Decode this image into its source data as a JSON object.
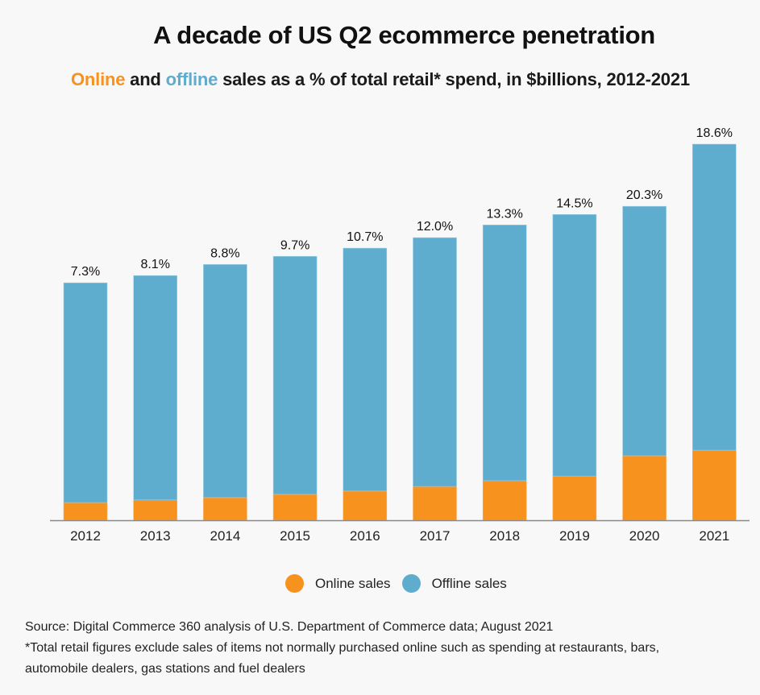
{
  "chart_data": {
    "type": "bar",
    "stacked": true,
    "title": "A decade of US Q2 ecommerce penetration",
    "subtitle": {
      "online_word": "Online",
      "connector": " and ",
      "offline_word": "offline",
      "rest": " sales as a % of total retail* spend, in $billions, 2012-2021"
    },
    "xlabel": "",
    "ylabel": "",
    "y_axis_visible": false,
    "grid": false,
    "units": "$ billions (estimated; no y-axis shown)",
    "ylim": [
      0,
      1200
    ],
    "categories": [
      "2012",
      "2013",
      "2014",
      "2015",
      "2016",
      "2017",
      "2018",
      "2019",
      "2020",
      "2021"
    ],
    "series": [
      {
        "name": "Online sales",
        "color": "#f7921e",
        "values": [
          54,
          62,
          69,
          79,
          89,
          103,
          121,
          135,
          197,
          214
        ]
      },
      {
        "name": "Offline sales",
        "color": "#5eacce",
        "values": [
          672,
          686,
          713,
          728,
          743,
          761,
          782,
          800,
          763,
          936
        ]
      }
    ],
    "data_labels": [
      "7.3%",
      "8.1%",
      "8.8%",
      "9.7%",
      "10.7%",
      "12.0%",
      "13.3%",
      "14.5%",
      "20.3%",
      "18.6%"
    ],
    "legend": {
      "position": "bottom-center",
      "entries": [
        {
          "label": "Online sales",
          "color": "#f7921e"
        },
        {
          "label": "Offline sales",
          "color": "#5eacce"
        }
      ]
    }
  },
  "colors": {
    "online": "#f7921e",
    "offline": "#5eacce",
    "axis": "#8a8a8a",
    "background": "#f8f8f8"
  },
  "footer": {
    "source": "Source: Digital Commerce 360 analysis of U.S. Department of Commerce data; August 2021",
    "note_line1": "*Total retail figures exclude sales of items not normally purchased online such as spending at restaurants, bars,",
    "note_line2": "automobile dealers, gas stations and fuel dealers"
  }
}
